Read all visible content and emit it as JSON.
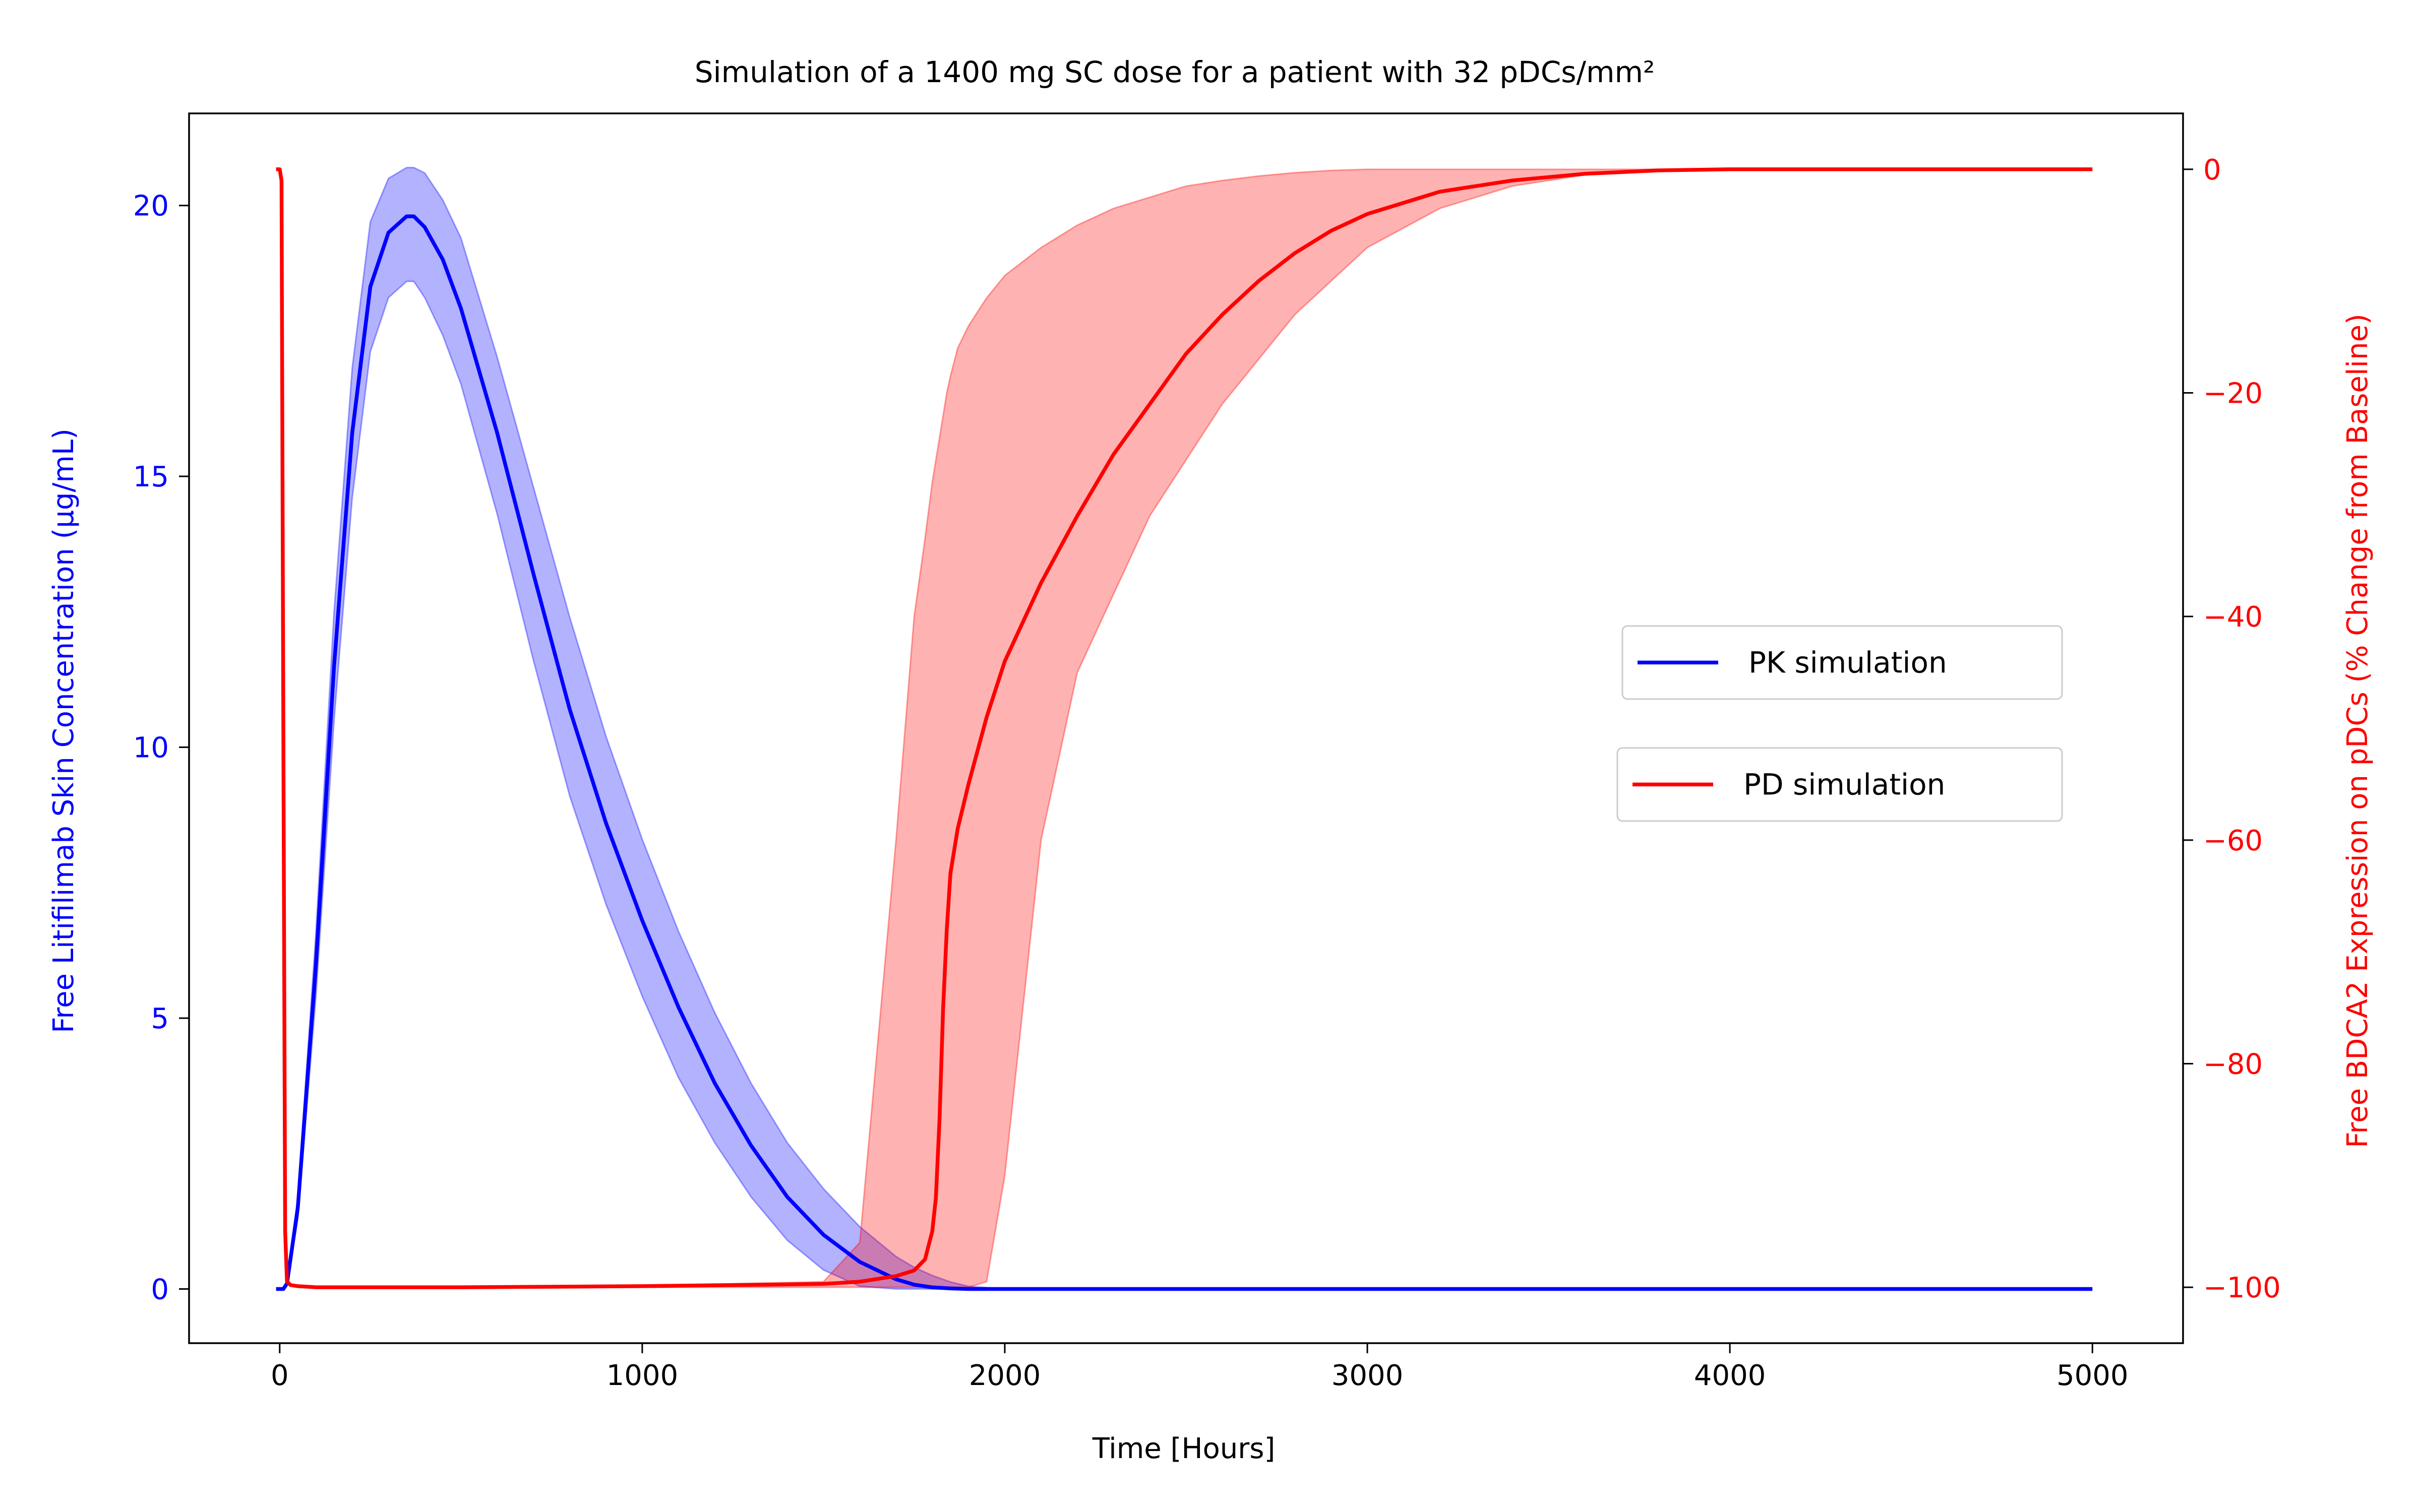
{
  "chart_data": {
    "type": "line",
    "title": "Simulation of a 1400 mg SC dose for a patient with 32 pDCs/mm²",
    "xlabel": "Time [Hours]",
    "ylabel_left": "Free Litifilimab Skin Concentration (μg/mL)",
    "ylabel_right": "Free BDCA2 Expression on pDCs (% Change from Baseline)",
    "xlim": [
      -250,
      5250
    ],
    "ylim_left": [
      -1.0,
      21.7
    ],
    "ylim_right": [
      -105,
      5
    ],
    "xticks": [
      0,
      1000,
      2000,
      3000,
      4000,
      5000
    ],
    "xtick_labels": [
      "0",
      "1000",
      "2000",
      "3000",
      "4000",
      "5000"
    ],
    "yticks_left": [
      0,
      5,
      10,
      15,
      20
    ],
    "ytick_labels_left": [
      "0",
      "5",
      "10",
      "15",
      "20"
    ],
    "yticks_right": [
      0,
      -20,
      -40,
      -60,
      -80,
      -100
    ],
    "ytick_labels_right": [
      "0",
      "−20",
      "−40",
      "−60",
      "−80",
      "−100"
    ],
    "grid": false,
    "legend": [
      {
        "label": "PK simulation",
        "color": "#0000ff",
        "position": "center-right"
      },
      {
        "label": "PD simulation",
        "color": "#ff0000",
        "position": "center-right"
      }
    ],
    "series": [
      {
        "name": "PK simulation",
        "axis": "left",
        "color": "#0000ff",
        "band_color": "#0000ff",
        "x": [
          -10,
          0,
          10,
          20,
          50,
          100,
          150,
          200,
          250,
          300,
          350,
          370,
          400,
          450,
          500,
          600,
          700,
          800,
          900,
          1000,
          1100,
          1200,
          1300,
          1400,
          1500,
          1600,
          1700,
          1750,
          1800,
          1850,
          1900,
          2000,
          3000,
          4000,
          5000
        ],
        "y": [
          0,
          0,
          0,
          0.1,
          1.5,
          6.0,
          11.5,
          15.8,
          18.5,
          19.5,
          19.8,
          19.8,
          19.6,
          19.0,
          18.1,
          15.8,
          13.2,
          10.7,
          8.6,
          6.8,
          5.2,
          3.8,
          2.65,
          1.7,
          1.0,
          0.5,
          0.18,
          0.08,
          0.03,
          0.01,
          0,
          0,
          0,
          0,
          0
        ],
        "lower": [
          0,
          0,
          0,
          0.08,
          1.3,
          5.4,
          10.5,
          14.6,
          17.3,
          18.3,
          18.6,
          18.6,
          18.3,
          17.6,
          16.7,
          14.3,
          11.6,
          9.1,
          7.1,
          5.4,
          3.9,
          2.7,
          1.7,
          0.9,
          0.35,
          0.05,
          0,
          0,
          0,
          0,
          0,
          0,
          0,
          0,
          0
        ],
        "upper": [
          0,
          0,
          0,
          0.12,
          1.7,
          6.6,
          12.5,
          17.0,
          19.7,
          20.5,
          20.7,
          20.7,
          20.6,
          20.1,
          19.4,
          17.2,
          14.8,
          12.4,
          10.2,
          8.3,
          6.6,
          5.1,
          3.8,
          2.7,
          1.85,
          1.15,
          0.6,
          0.4,
          0.25,
          0.13,
          0.05,
          0,
          0,
          0,
          0
        ]
      },
      {
        "name": "PD simulation",
        "axis": "right",
        "color": "#ff0000",
        "band_color": "#ff0000",
        "x": [
          -10,
          0,
          5,
          10,
          15,
          20,
          30,
          50,
          100,
          500,
          1000,
          1500,
          1600,
          1700,
          1750,
          1780,
          1800,
          1810,
          1820,
          1830,
          1840,
          1850,
          1870,
          1900,
          1950,
          2000,
          2100,
          2200,
          2300,
          2400,
          2500,
          2600,
          2700,
          2800,
          2900,
          3000,
          3200,
          3400,
          3600,
          3800,
          4000,
          4500,
          5000
        ],
        "y": [
          0,
          0,
          -1,
          -50,
          -95,
          -99.5,
          -99.8,
          -99.9,
          -100,
          -100,
          -99.9,
          -99.7,
          -99.5,
          -99,
          -98.5,
          -97.5,
          -95,
          -92,
          -85,
          -75,
          -68,
          -63,
          -59,
          -55,
          -49,
          -44,
          -37,
          -31,
          -25.5,
          -21,
          -16.5,
          -13,
          -10,
          -7.5,
          -5.5,
          -4,
          -2,
          -1,
          -0.4,
          -0.1,
          0,
          0,
          0
        ],
        "lower": [
          0,
          0,
          -1,
          -50,
          -95,
          -99.5,
          -99.8,
          -99.9,
          -100,
          -100,
          -100,
          -100,
          -100,
          -100,
          -100,
          -100,
          -100,
          -100,
          -100,
          -100,
          -100,
          -100,
          -100,
          -100,
          -99.5,
          -90,
          -60,
          -45,
          -38,
          -31,
          -26,
          -21,
          -17,
          -13,
          -10,
          -7,
          -3.5,
          -1.5,
          -0.5,
          -0.1,
          0,
          0,
          0
        ],
        "upper": [
          0,
          0,
          -1,
          -50,
          -95,
          -99.5,
          -99.8,
          -99.9,
          -100,
          -100,
          -99.9,
          -99.5,
          -96,
          -60,
          -40,
          -33,
          -28,
          -26,
          -24,
          -22,
          -20,
          -18.5,
          -16,
          -14,
          -11.5,
          -9.5,
          -7,
          -5,
          -3.5,
          -2.5,
          -1.5,
          -1,
          -0.6,
          -0.3,
          -0.1,
          0,
          0,
          0,
          0,
          0,
          0,
          0,
          0
        ]
      }
    ]
  }
}
